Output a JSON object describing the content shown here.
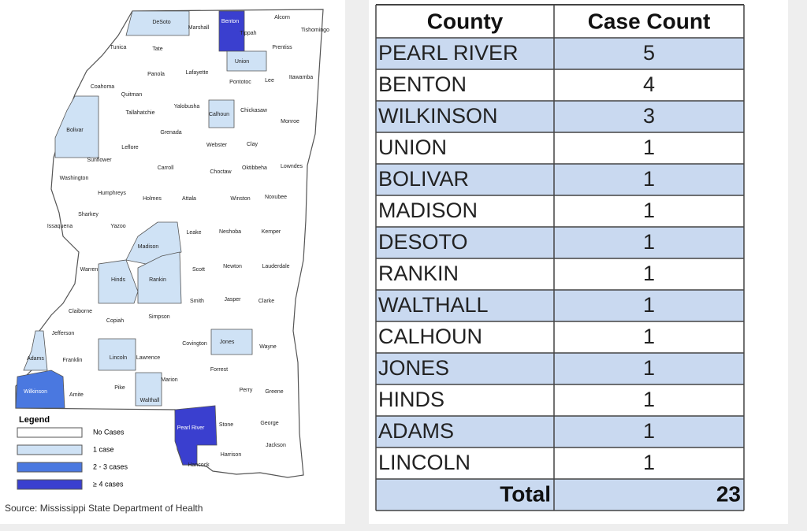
{
  "map": {
    "counties": [
      "DeSoto",
      "Benton",
      "Alcorn",
      "Tishomingo",
      "Marshall",
      "Tippah",
      "Tunica",
      "Tate",
      "Prentiss",
      "Union",
      "Panola",
      "Lafayette",
      "Coahoma",
      "Pontotoc",
      "Lee",
      "Itawamba",
      "Quitman",
      "Yalobusha",
      "Calhoun",
      "Chickasaw",
      "Tallahatchie",
      "Bolivar",
      "Grenada",
      "Monroe",
      "Webster",
      "Clay",
      "Leflore",
      "Sunflower",
      "Carroll",
      "Choctaw",
      "Oktibbeha",
      "Lowndes",
      "Washington",
      "Humphreys",
      "Holmes",
      "Attala",
      "Winston",
      "Noxubee",
      "Sharkey",
      "Yazoo",
      "Issaquena",
      "Leake",
      "Neshoba",
      "Kemper",
      "Madison",
      "Scott",
      "Newton",
      "Lauderdale",
      "Warren",
      "Hinds",
      "Rankin",
      "Smith",
      "Jasper",
      "Clarke",
      "Claiborne",
      "Copiah",
      "Simpson",
      "Jefferson",
      "Covington",
      "Jones",
      "Wayne",
      "Adams",
      "Franklin",
      "Lincoln",
      "Lawrence",
      "Forrest",
      "Marion",
      "Perry",
      "Greene",
      "Wilkinson",
      "Amite",
      "Pike",
      "Walthall",
      "Pearl River",
      "Stone",
      "George",
      "Harrison",
      "Jackson",
      "Hancock"
    ],
    "legend": {
      "title": "Legend",
      "items": [
        {
          "label": "No Cases",
          "color": "#ffffff"
        },
        {
          "label": "1 case",
          "color": "#cfe2f5"
        },
        {
          "label": "2 - 3 cases",
          "color": "#4a78e0"
        },
        {
          "label": "≥ 4 cases",
          "color": "#3a3fcf"
        }
      ]
    },
    "source": "Source: Mississippi State Department of Health"
  },
  "table": {
    "headers": [
      "County",
      "Case Count"
    ],
    "rows": [
      [
        "PEARL RIVER",
        5
      ],
      [
        "BENTON",
        4
      ],
      [
        "WILKINSON",
        3
      ],
      [
        "UNION",
        1
      ],
      [
        "BOLIVAR",
        1
      ],
      [
        "MADISON",
        1
      ],
      [
        "DESOTO",
        1
      ],
      [
        "RANKIN",
        1
      ],
      [
        "WALTHALL",
        1
      ],
      [
        "CALHOUN",
        1
      ],
      [
        "JONES",
        1
      ],
      [
        "HINDS",
        1
      ],
      [
        "ADAMS",
        1
      ],
      [
        "LINCOLN",
        1
      ]
    ],
    "total": {
      "label": "Total",
      "value": 23
    }
  }
}
